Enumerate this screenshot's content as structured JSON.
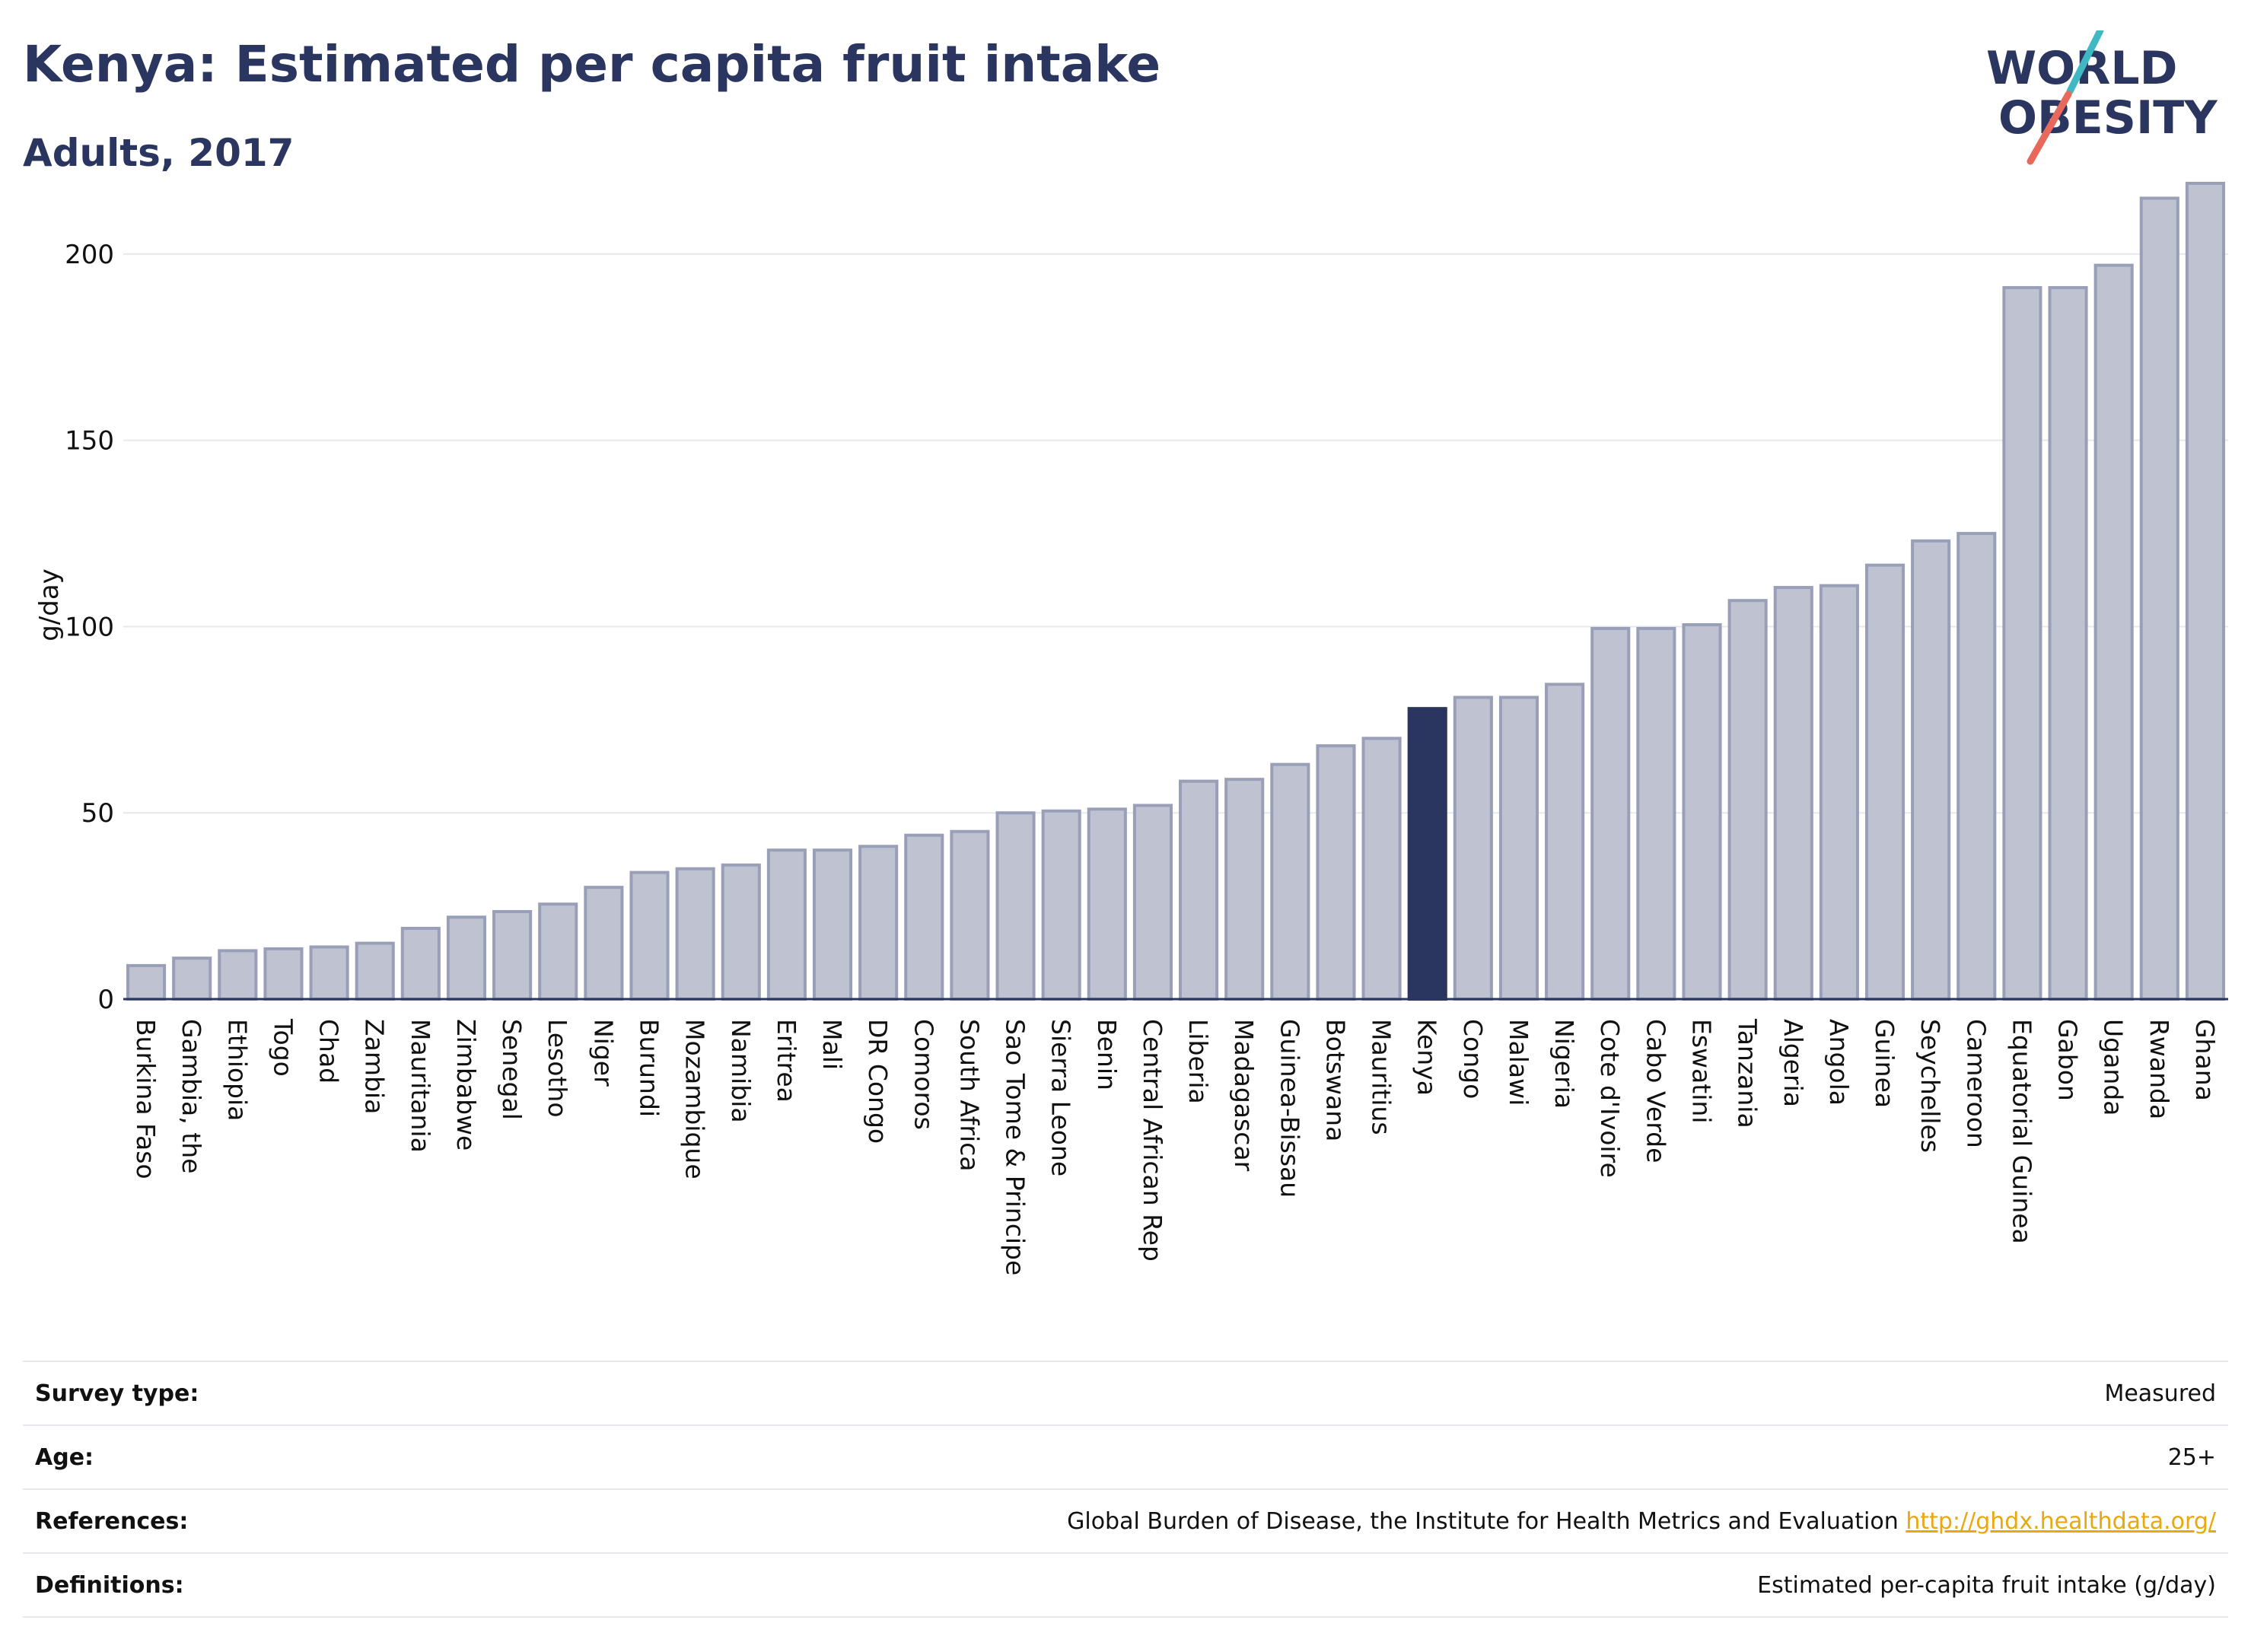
{
  "header": {
    "title": "Kenya: Estimated per capita fruit intake",
    "subtitle": "Adults, 2017"
  },
  "logo": {
    "line1": "WORLD",
    "line2": "OBESITY",
    "text_color": "#2a3560",
    "slash_colors": [
      "#3fb8c4",
      "#e8685c"
    ]
  },
  "colors": {
    "bar_fill": "#bfc2d1",
    "bar_stroke": "#9a9fb8",
    "highlight_fill": "#2a3560",
    "grid": "#e6e8ee",
    "axis": "#2a3560",
    "link": "#e8a80e"
  },
  "chart_data": {
    "type": "bar",
    "title": "Kenya: Estimated per capita fruit intake",
    "subtitle": "Adults, 2017",
    "xlabel": "",
    "ylabel": "g/day",
    "ylim": [
      0,
      220
    ],
    "yticks": [
      0,
      50,
      100,
      150,
      200
    ],
    "grid": true,
    "highlight": "Kenya",
    "categories": [
      "Burkina Faso",
      "Gambia, the",
      "Ethiopia",
      "Togo",
      "Chad",
      "Zambia",
      "Mauritania",
      "Zimbabwe",
      "Senegal",
      "Lesotho",
      "Niger",
      "Burundi",
      "Mozambique",
      "Namibia",
      "Eritrea",
      "Mali",
      "DR Congo",
      "Comoros",
      "South Africa",
      "Sao Tome & Principe",
      "Sierra Leone",
      "Benin",
      "Central African Rep",
      "Liberia",
      "Madagascar",
      "Guinea-Bissau",
      "Botswana",
      "Mauritius",
      "Kenya",
      "Congo",
      "Malawi",
      "Nigeria",
      "Cote d'Ivoire",
      "Cabo Verde",
      "Eswatini",
      "Tanzania",
      "Algeria",
      "Angola",
      "Guinea",
      "Seychelles",
      "Cameroon",
      "Equatorial Guinea",
      "Gabon",
      "Uganda",
      "Rwanda",
      "Ghana"
    ],
    "values": [
      9,
      11,
      13,
      13.5,
      14,
      15,
      19,
      22,
      23.5,
      25.5,
      30,
      34,
      35,
      36,
      40,
      40,
      41,
      44,
      45,
      50,
      50.5,
      51,
      52,
      58.5,
      59,
      63,
      68,
      70,
      78,
      81,
      81,
      84.5,
      99.5,
      99.5,
      100.5,
      107,
      110.5,
      111,
      116.5,
      123,
      125,
      191,
      191,
      197,
      215,
      219
    ]
  },
  "info": {
    "rows": [
      {
        "label": "Survey type:",
        "value": "Measured",
        "link": ""
      },
      {
        "label": "Age:",
        "value": "25+",
        "link": ""
      },
      {
        "label": "References:",
        "value": "Global Burden of Disease, the Institute for Health Metrics and Evaluation",
        "link": "http://ghdx.healthdata.org/"
      },
      {
        "label": "Definitions:",
        "value": "Estimated per-capita fruit intake (g/day)",
        "link": ""
      }
    ]
  }
}
